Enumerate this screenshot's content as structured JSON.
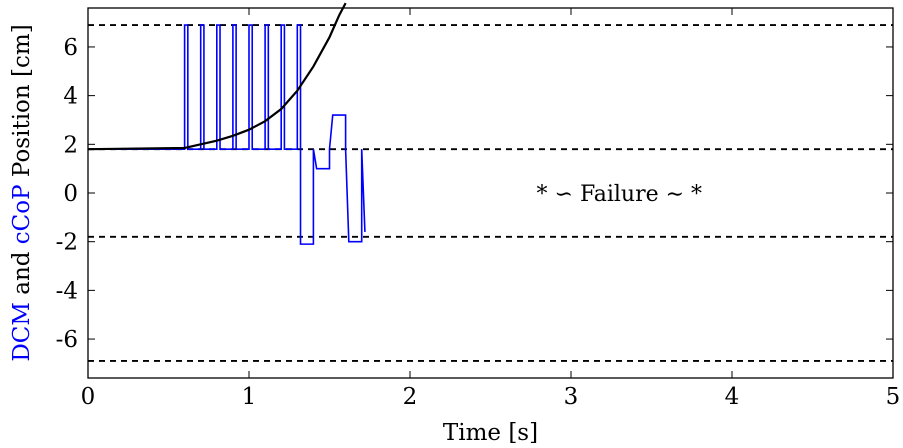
{
  "chart_data": {
    "type": "line",
    "xlabel": "Time [s]",
    "ylabel_parts": [
      {
        "text": "DCM",
        "color": "#0000ff"
      },
      {
        "text": " and ",
        "color": "#000000"
      },
      {
        "text": "cCoP",
        "color": "#0000ff"
      },
      {
        "text": " Position [cm]",
        "color": "#000000"
      }
    ],
    "xlim": [
      0,
      5
    ],
    "ylim": [
      -7.6,
      7.6
    ],
    "xticks": [
      0,
      1,
      2,
      3,
      4,
      5
    ],
    "xtick_labels": [
      "0",
      "1",
      "2",
      "3",
      "4",
      "5"
    ],
    "yticks": [
      6,
      4,
      2,
      0,
      -2,
      -4,
      -6
    ],
    "ytick_labels": [
      "6",
      "4",
      "2",
      "0",
      "-2",
      "-4",
      "-6"
    ],
    "grid": false,
    "annotation": {
      "text": "* ∽ Failure ∼ *",
      "x": 3.3,
      "y": 0
    },
    "colors": {
      "dcm": "#000000",
      "ccop": "#0000ff",
      "limits": "#000000"
    },
    "limit_lines": [
      6.9,
      1.8,
      -1.8,
      -6.9
    ],
    "series": [
      {
        "key": "dcm",
        "style": "solid",
        "x": [
          0,
          0.6,
          0.7,
          0.8,
          0.9,
          1.0,
          1.1,
          1.2,
          1.3,
          1.4,
          1.5,
          1.56,
          1.6
        ],
        "y": [
          1.8,
          1.85,
          2.0,
          2.15,
          2.35,
          2.6,
          2.95,
          3.45,
          4.2,
          5.2,
          6.4,
          7.3,
          7.8
        ]
      },
      {
        "key": "ccop",
        "style": "solid",
        "x": [
          0,
          0.6,
          0.6,
          0.62,
          0.62,
          0.7,
          0.7,
          0.72,
          0.72,
          0.8,
          0.8,
          0.82,
          0.82,
          0.9,
          0.9,
          0.92,
          0.92,
          1.0,
          1.0,
          1.02,
          1.02,
          1.1,
          1.1,
          1.12,
          1.12,
          1.2,
          1.2,
          1.22,
          1.22,
          1.3,
          1.3,
          1.32,
          1.32,
          1.4,
          1.4,
          1.42,
          1.42,
          1.5,
          1.5,
          1.52,
          1.52,
          1.6,
          1.6,
          1.62,
          1.62,
          1.7,
          1.7,
          1.72
        ],
        "y": [
          1.8,
          1.8,
          6.9,
          6.9,
          1.8,
          1.8,
          6.9,
          6.9,
          1.8,
          1.8,
          6.9,
          6.9,
          1.8,
          1.8,
          6.9,
          6.9,
          1.8,
          1.8,
          6.9,
          6.9,
          1.8,
          1.8,
          6.9,
          6.9,
          1.8,
          1.8,
          6.9,
          6.9,
          1.8,
          1.8,
          6.9,
          6.9,
          -2.1,
          -2.1,
          1.8,
          1.0,
          1.0,
          1.0,
          1.8,
          3.2,
          3.2,
          3.2,
          1.8,
          -2.0,
          -2.0,
          -2.0,
          1.8,
          -1.6
        ]
      }
    ]
  }
}
